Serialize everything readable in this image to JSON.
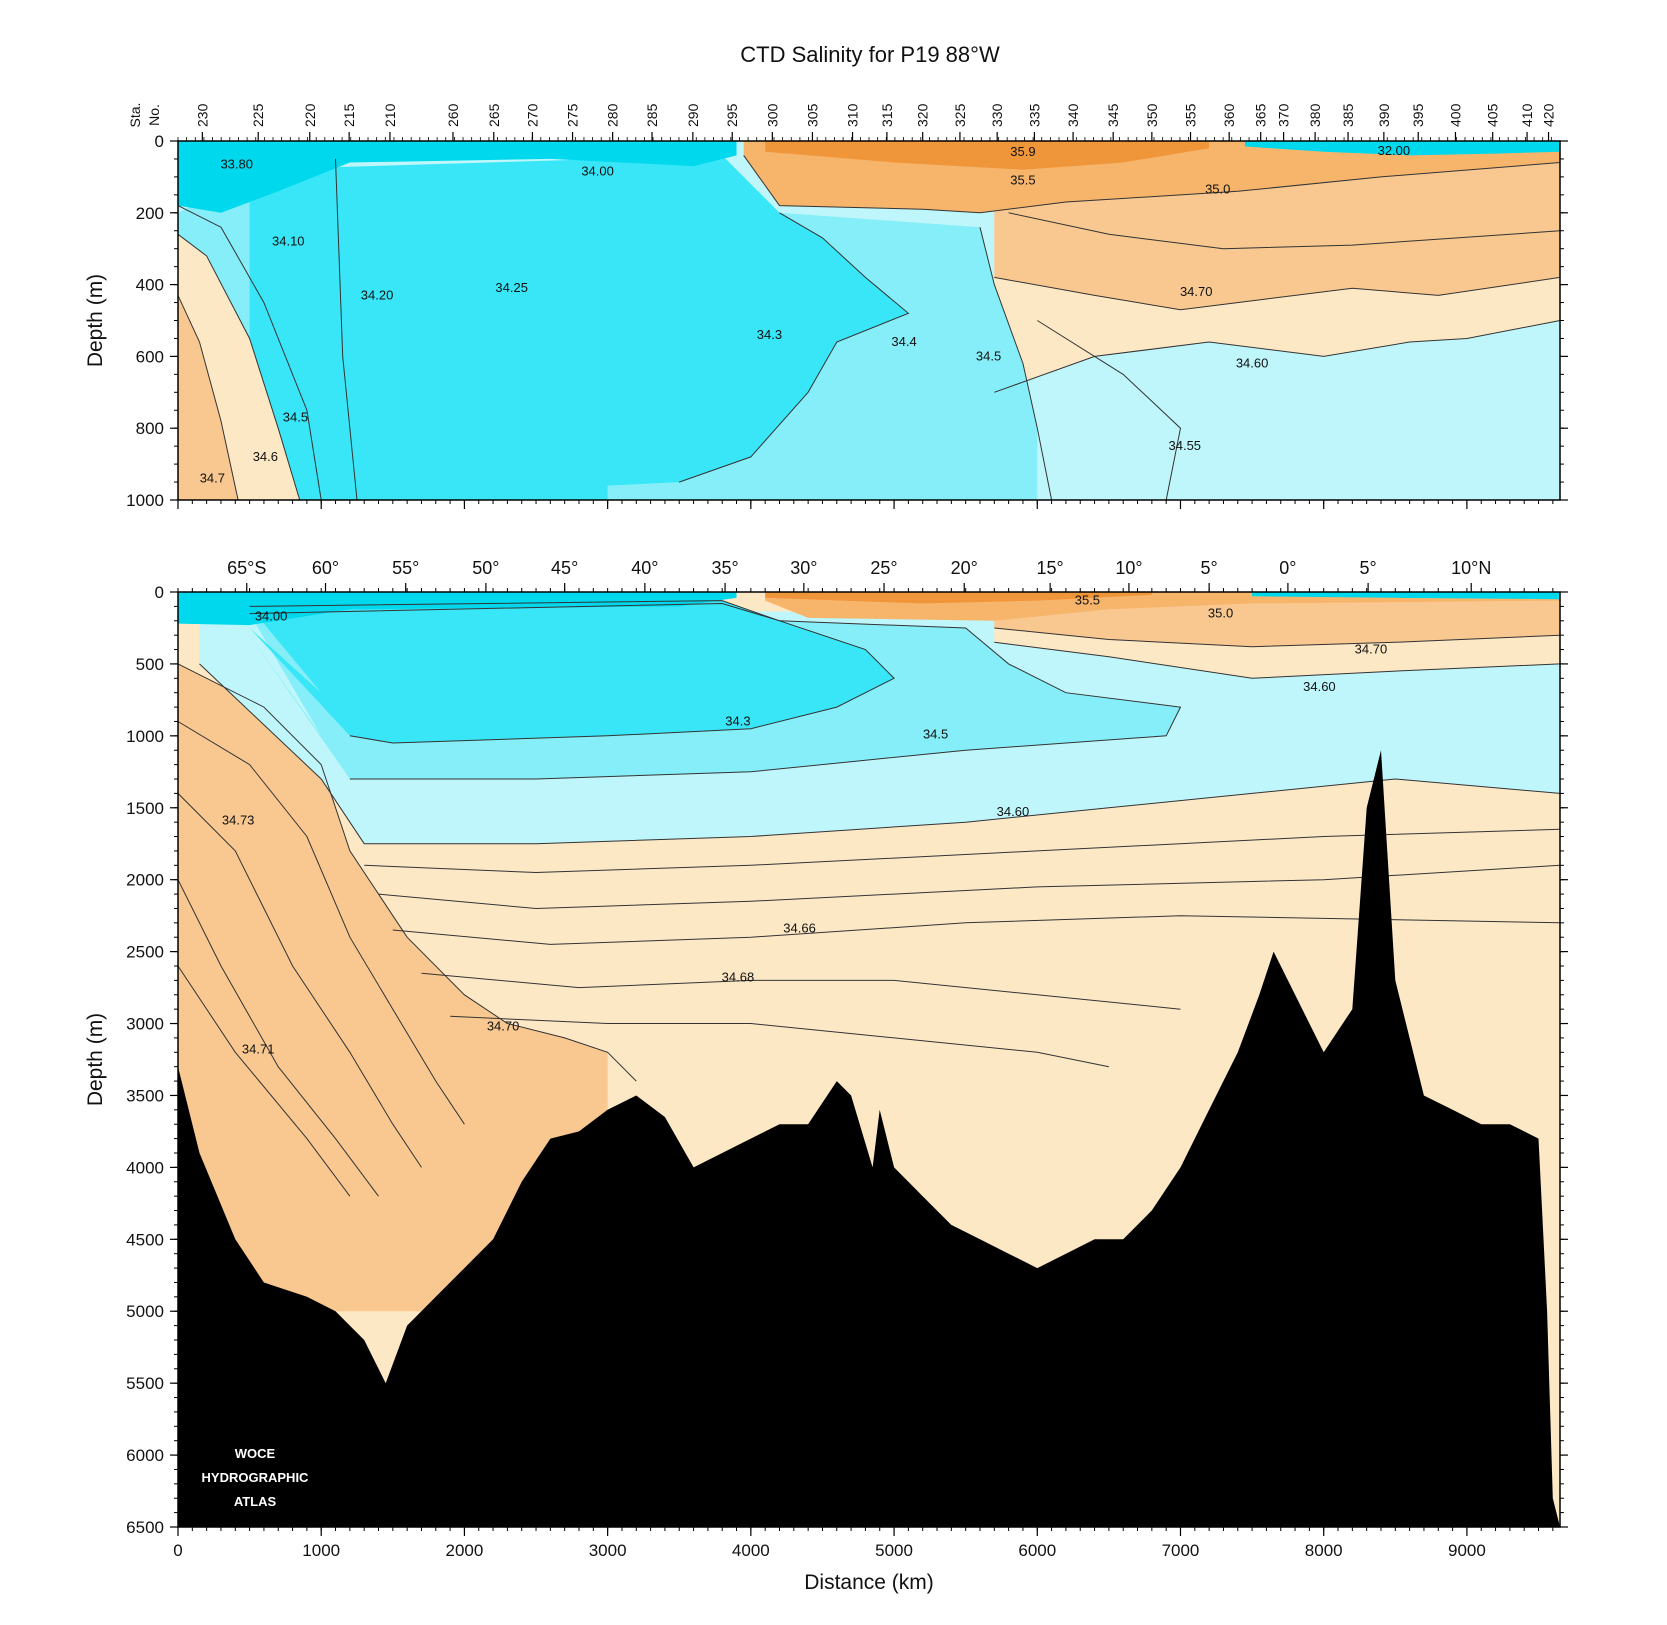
{
  "chart_data": {
    "type": "area",
    "title": "CTD Salinity for P19 88°W",
    "xlabel": "Distance (km)",
    "xlim": [
      0,
      9650
    ],
    "x_ticks": [
      0,
      1000,
      2000,
      3000,
      4000,
      5000,
      6000,
      7000,
      8000,
      9000
    ],
    "station_axis_label": [
      "Sta.",
      "No."
    ],
    "stations": [
      {
        "label": "230",
        "x": 170
      },
      {
        "label": "225",
        "x": 560
      },
      {
        "label": "220",
        "x": 920
      },
      {
        "label": "215",
        "x": 1195
      },
      {
        "label": "210",
        "x": 1480
      },
      {
        "label": "260",
        "x": 1920
      },
      {
        "label": "265",
        "x": 2205
      },
      {
        "label": "270",
        "x": 2475
      },
      {
        "label": "275",
        "x": 2755
      },
      {
        "label": "280",
        "x": 3035
      },
      {
        "label": "285",
        "x": 3310
      },
      {
        "label": "290",
        "x": 3595
      },
      {
        "label": "295",
        "x": 3870
      },
      {
        "label": "300",
        "x": 4150
      },
      {
        "label": "305",
        "x": 4430
      },
      {
        "label": "310",
        "x": 4710
      },
      {
        "label": "315",
        "x": 4950
      },
      {
        "label": "320",
        "x": 5200
      },
      {
        "label": "325",
        "x": 5460
      },
      {
        "label": "330",
        "x": 5720
      },
      {
        "label": "335",
        "x": 5980
      },
      {
        "label": "340",
        "x": 6250
      },
      {
        "label": "345",
        "x": 6530
      },
      {
        "label": "350",
        "x": 6800
      },
      {
        "label": "355",
        "x": 7070
      },
      {
        "label": "360",
        "x": 7340
      },
      {
        "label": "365",
        "x": 7560
      },
      {
        "label": "370",
        "x": 7720
      },
      {
        "label": "380",
        "x": 7940
      },
      {
        "label": "385",
        "x": 8170
      },
      {
        "label": "390",
        "x": 8420
      },
      {
        "label": "395",
        "x": 8660
      },
      {
        "label": "400",
        "x": 8920
      },
      {
        "label": "405",
        "x": 9180
      },
      {
        "label": "410",
        "x": 9420
      },
      {
        "label": "420",
        "x": 9570
      }
    ],
    "latitudes": [
      {
        "label": "65°S",
        "x": 480
      },
      {
        "label": "60°",
        "x": 1030
      },
      {
        "label": "55°",
        "x": 1590
      },
      {
        "label": "50°",
        "x": 2150
      },
      {
        "label": "45°",
        "x": 2700
      },
      {
        "label": "40°",
        "x": 3260
      },
      {
        "label": "35°",
        "x": 3820
      },
      {
        "label": "30°",
        "x": 4370
      },
      {
        "label": "25°",
        "x": 4930
      },
      {
        "label": "20°",
        "x": 5490
      },
      {
        "label": "15°",
        "x": 6090
      },
      {
        "label": "10°",
        "x": 6640
      },
      {
        "label": "5°",
        "x": 7200
      },
      {
        "label": "0°",
        "x": 7750
      },
      {
        "label": "5°",
        "x": 8310
      },
      {
        "label": "10°N",
        "x": 9030
      }
    ],
    "legend": "none",
    "series": [
      {
        "name": "",
        "panel": "upper",
        "ylabel": "Depth (m)",
        "ylim": [
          0,
          1000
        ],
        "y_ticks": [
          0,
          200,
          400,
          600,
          800,
          1000
        ],
        "contour_labels": [
          {
            "text": "33.80",
            "x": 410,
            "y": 65
          },
          {
            "text": "34.00",
            "x": 2930,
            "y": 85
          },
          {
            "text": "35.9",
            "x": 5900,
            "y": 30
          },
          {
            "text": "35.5",
            "x": 5900,
            "y": 110
          },
          {
            "text": "35.0",
            "x": 7260,
            "y": 135
          },
          {
            "text": "32.00",
            "x": 8490,
            "y": 28
          },
          {
            "text": "34.10",
            "x": 770,
            "y": 280
          },
          {
            "text": "34.20",
            "x": 1390,
            "y": 430
          },
          {
            "text": "34.25",
            "x": 2330,
            "y": 410
          },
          {
            "text": "34.70",
            "x": 7110,
            "y": 420
          },
          {
            "text": "34.3",
            "x": 4130,
            "y": 540
          },
          {
            "text": "34.4",
            "x": 5070,
            "y": 560
          },
          {
            "text": "34.5",
            "x": 5660,
            "y": 600
          },
          {
            "text": "34.60",
            "x": 7500,
            "y": 620
          },
          {
            "text": "34.5",
            "x": 820,
            "y": 770
          },
          {
            "text": "34.55",
            "x": 7030,
            "y": 850
          },
          {
            "text": "34.6",
            "x": 610,
            "y": 880
          },
          {
            "text": "34.7",
            "x": 240,
            "y": 940
          }
        ]
      },
      {
        "name": "",
        "panel": "lower",
        "ylabel": "Depth (m)",
        "ylim": [
          0,
          6500
        ],
        "y_ticks": [
          0,
          500,
          1000,
          1500,
          2000,
          2500,
          3000,
          3500,
          4000,
          4500,
          5000,
          5500,
          6000,
          6500
        ],
        "contour_labels": [
          {
            "text": "34.00",
            "x": 650,
            "y": 170
          },
          {
            "text": "35.5",
            "x": 6350,
            "y": 60
          },
          {
            "text": "35.0",
            "x": 7280,
            "y": 150
          },
          {
            "text": "34.70",
            "x": 8330,
            "y": 400
          },
          {
            "text": "34.60",
            "x": 7970,
            "y": 660
          },
          {
            "text": "34.3",
            "x": 3910,
            "y": 900
          },
          {
            "text": "34.5",
            "x": 5290,
            "y": 990
          },
          {
            "text": "34.60",
            "x": 5830,
            "y": 1530
          },
          {
            "text": "34.73",
            "x": 420,
            "y": 1590
          },
          {
            "text": "34.66",
            "x": 4340,
            "y": 2340
          },
          {
            "text": "34.68",
            "x": 3910,
            "y": 2680
          },
          {
            "text": "34.70",
            "x": 2270,
            "y": 3020
          },
          {
            "text": "34.71",
            "x": 560,
            "y": 3180
          }
        ],
        "bathymetry": {
          "x": [
            0,
            150,
            400,
            600,
            900,
            1100,
            1300,
            1450,
            1600,
            1800,
            2000,
            2200,
            2400,
            2600,
            2800,
            3000,
            3200,
            3400,
            3600,
            3800,
            4000,
            4200,
            4400,
            4600,
            4700,
            4850,
            4900,
            5000,
            5200,
            5400,
            5600,
            5800,
            6000,
            6200,
            6400,
            6600,
            6800,
            7000,
            7200,
            7400,
            7550,
            7650,
            7800,
            8000,
            8200,
            8300,
            8400,
            8500,
            8700,
            8900,
            9100,
            9300,
            9500,
            9560,
            9600,
            9650
          ],
          "y": [
            3300,
            3900,
            4500,
            4800,
            4900,
            5000,
            5200,
            5500,
            5100,
            4900,
            4700,
            4500,
            4100,
            3800,
            3750,
            3600,
            3500,
            3650,
            4000,
            3900,
            3800,
            3700,
            3700,
            3400,
            3500,
            4000,
            3600,
            4000,
            4200,
            4400,
            4500,
            4600,
            4700,
            4600,
            4500,
            4500,
            4300,
            4000,
            3600,
            3200,
            2800,
            2500,
            2800,
            3200,
            2900,
            1500,
            1100,
            2700,
            3500,
            3600,
            3700,
            3700,
            3800,
            5000,
            6300,
            6500
          ]
        }
      }
    ],
    "colors": {
      "fresh_deep": "#00d8ee",
      "fresh": "#38e6f8",
      "fresh_mid": "#86eef8",
      "fresh_light": "#bff6fb",
      "salty_light": "#fde8c6",
      "salty": "#f8c890",
      "salty_mid": "#f7b56c",
      "salty_deep": "#f0963a",
      "bathymetry": "#000000",
      "contour": "#333333"
    }
  },
  "watermark": [
    "WOCE",
    "HYDROGRAPHIC",
    "ATLAS"
  ]
}
